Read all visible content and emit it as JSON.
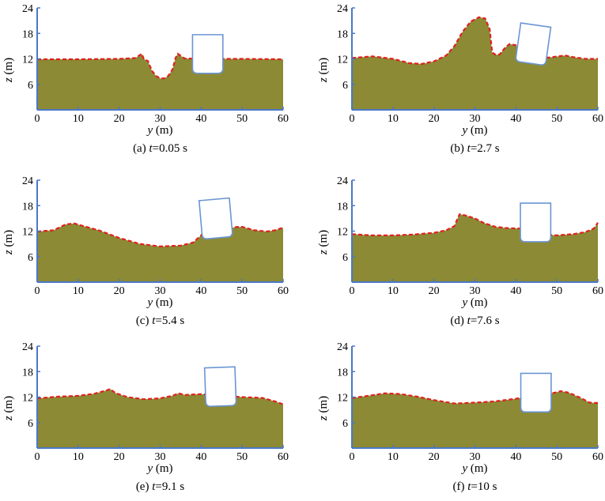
{
  "colors": {
    "fluid_fill": "#8c8a34",
    "free_surface": "#e02020",
    "axis": "#4a78c8",
    "box_stroke": "#6a95d4"
  },
  "chart_data": [
    {
      "type": "area",
      "caption": "(a) t=0.05 s",
      "caption_prefix": "(a) ",
      "caption_var": "t",
      "caption_rest": "=0.05 s",
      "xlabel_var": "y",
      "xlabel_unit": " (m)",
      "ylabel_var": "z",
      "ylabel_unit": " (m)",
      "xlim": [
        0,
        60
      ],
      "ylim": [
        0,
        24
      ],
      "xticks": [
        "0",
        "10",
        "20",
        "30",
        "40",
        "50",
        "60"
      ],
      "yticks": [
        "6",
        "12",
        "18",
        "24"
      ],
      "surface": [
        [
          0,
          11.9
        ],
        [
          10,
          11.9
        ],
        [
          20,
          12.0
        ],
        [
          24,
          12.2
        ],
        [
          25.5,
          13.2
        ],
        [
          26,
          12.0
        ],
        [
          27,
          11.5
        ],
        [
          28,
          9.2
        ],
        [
          29,
          8.0
        ],
        [
          30,
          7.4
        ],
        [
          31,
          7.4
        ],
        [
          32,
          8.0
        ],
        [
          33,
          9.5
        ],
        [
          33.8,
          12.3
        ],
        [
          34.3,
          13.2
        ],
        [
          36,
          12.1
        ],
        [
          40,
          12.0
        ],
        [
          50,
          12.0
        ],
        [
          60,
          11.9
        ]
      ],
      "box": {
        "center_y": 41.6,
        "bottom_z": 8.6,
        "width": 7.4,
        "height": 9.1,
        "angle_deg": 0
      }
    },
    {
      "type": "area",
      "caption": "(b) t=2.7 s",
      "caption_prefix": "(b) ",
      "caption_var": "t",
      "caption_rest": "=2.7 s",
      "xlabel_var": "y",
      "xlabel_unit": " (m)",
      "ylabel_var": "z",
      "ylabel_unit": " (m)",
      "xlim": [
        0,
        60
      ],
      "ylim": [
        0,
        24
      ],
      "xticks": [
        "0",
        "10",
        "20",
        "30",
        "40",
        "50",
        "60"
      ],
      "yticks": [
        "6",
        "12",
        "18",
        "24"
      ],
      "surface": [
        [
          0,
          12.2
        ],
        [
          5,
          12.6
        ],
        [
          10,
          12.0
        ],
        [
          14,
          11.0
        ],
        [
          17,
          10.8
        ],
        [
          20,
          11.4
        ],
        [
          23,
          12.8
        ],
        [
          25,
          15.0
        ],
        [
          27,
          18.4
        ],
        [
          29,
          20.8
        ],
        [
          31,
          21.8
        ],
        [
          32.5,
          21.5
        ],
        [
          33.6,
          19.0
        ],
        [
          34.2,
          13.5
        ],
        [
          35,
          13.0
        ],
        [
          36,
          13.0
        ],
        [
          37.5,
          14.8
        ],
        [
          38.5,
          15.5
        ],
        [
          40,
          15.2
        ],
        [
          41,
          14.0
        ],
        [
          43,
          12.7
        ],
        [
          48,
          12.3
        ],
        [
          52,
          12.8
        ],
        [
          54,
          12.4
        ],
        [
          57,
          12.0
        ],
        [
          60,
          12.0
        ]
      ],
      "box": {
        "center_y": 44.2,
        "bottom_z": 10.9,
        "width": 7.4,
        "height": 9.1,
        "angle_deg": 8
      }
    },
    {
      "type": "area",
      "caption": "(c) t=5.4 s",
      "caption_prefix": "(c) ",
      "caption_var": "t",
      "caption_rest": "=5.4 s",
      "xlabel_var": "y",
      "xlabel_unit": " (m)",
      "ylabel_var": "z",
      "ylabel_unit": " (m)",
      "xlim": [
        0,
        60
      ],
      "ylim": [
        0,
        24
      ],
      "xticks": [
        "0",
        "10",
        "20",
        "30",
        "40",
        "50",
        "60"
      ],
      "yticks": [
        "6",
        "12",
        "18",
        "24"
      ],
      "surface": [
        [
          0,
          11.9
        ],
        [
          4,
          12.2
        ],
        [
          7,
          13.6
        ],
        [
          9,
          13.8
        ],
        [
          12,
          13.0
        ],
        [
          15,
          12.2
        ],
        [
          20,
          10.4
        ],
        [
          25,
          9.0
        ],
        [
          30,
          8.4
        ],
        [
          35,
          8.6
        ],
        [
          38,
          9.3
        ],
        [
          40,
          11.0
        ],
        [
          41,
          12.3
        ],
        [
          43,
          12.8
        ],
        [
          45,
          12.5
        ],
        [
          49,
          13.0
        ],
        [
          50,
          13.0
        ],
        [
          53,
          12.2
        ],
        [
          56,
          11.9
        ],
        [
          58,
          12.2
        ],
        [
          60,
          12.8
        ]
      ],
      "box": {
        "center_y": 43.6,
        "bottom_z": 10.4,
        "width": 7.4,
        "height": 9.1,
        "angle_deg": -5
      }
    },
    {
      "type": "area",
      "caption": "(d) t=7.6 s",
      "caption_prefix": "(d) ",
      "caption_var": "t",
      "caption_rest": "=7.6 s",
      "xlabel_var": "y",
      "xlabel_unit": " (m)",
      "ylabel_var": "z",
      "ylabel_unit": " (m)",
      "xlim": [
        0,
        60
      ],
      "ylim": [
        0,
        24
      ],
      "xticks": [
        "0",
        "10",
        "20",
        "30",
        "40",
        "50",
        "60"
      ],
      "yticks": [
        "6",
        "12",
        "18",
        "24"
      ],
      "surface": [
        [
          0,
          11.3
        ],
        [
          5,
          11.0
        ],
        [
          10,
          11.0
        ],
        [
          15,
          11.2
        ],
        [
          20,
          11.6
        ],
        [
          23,
          12.2
        ],
        [
          25,
          13.2
        ],
        [
          25.8,
          15.0
        ],
        [
          26.3,
          16.0
        ],
        [
          28,
          15.6
        ],
        [
          30,
          15.0
        ],
        [
          32,
          14.0
        ],
        [
          35,
          13.0
        ],
        [
          38,
          12.7
        ],
        [
          42,
          12.6
        ],
        [
          46,
          11.3
        ],
        [
          50,
          11.0
        ],
        [
          54,
          11.3
        ],
        [
          57,
          11.8
        ],
        [
          59,
          12.6
        ],
        [
          60,
          14.0
        ]
      ],
      "box": {
        "center_y": 44.8,
        "bottom_z": 9.5,
        "width": 7.4,
        "height": 9.1,
        "angle_deg": 0
      }
    },
    {
      "type": "area",
      "caption": "(e) t=9.1 s",
      "caption_prefix": "(e) ",
      "caption_var": "t",
      "caption_rest": "=9.1 s",
      "xlabel_var": "y",
      "xlabel_unit": " (m)",
      "ylabel_var": "z",
      "ylabel_unit": " (m)",
      "xlim": [
        0,
        60
      ],
      "ylim": [
        0,
        24
      ],
      "xticks": [
        "0",
        "10",
        "20",
        "30",
        "40",
        "50",
        "60"
      ],
      "yticks": [
        "6",
        "12",
        "18",
        "24"
      ],
      "surface": [
        [
          0,
          11.7
        ],
        [
          5,
          12.1
        ],
        [
          10,
          12.3
        ],
        [
          14,
          12.8
        ],
        [
          17,
          13.6
        ],
        [
          17.8,
          13.9
        ],
        [
          19,
          13.0
        ],
        [
          22,
          12.0
        ],
        [
          26,
          11.5
        ],
        [
          30,
          11.7
        ],
        [
          33,
          12.3
        ],
        [
          34.5,
          12.9
        ],
        [
          36,
          12.5
        ],
        [
          40,
          12.7
        ],
        [
          45,
          12.3
        ],
        [
          50,
          12.0
        ],
        [
          55,
          11.8
        ],
        [
          58,
          11.0
        ],
        [
          60,
          10.3
        ]
      ],
      "box": {
        "center_y": 44.7,
        "bottom_z": 9.9,
        "width": 7.4,
        "height": 9.1,
        "angle_deg": -2
      }
    },
    {
      "type": "area",
      "caption": "(f) t=10 s",
      "caption_prefix": "(f) ",
      "caption_var": "t",
      "caption_rest": "=10 s",
      "xlabel_var": "y",
      "xlabel_unit": " (m)",
      "ylabel_var": "z",
      "ylabel_unit": " (m)",
      "xlim": [
        0,
        60
      ],
      "ylim": [
        0,
        24
      ],
      "xticks": [
        "0",
        "10",
        "20",
        "30",
        "40",
        "50",
        "60"
      ],
      "yticks": [
        "6",
        "12",
        "18",
        "24"
      ],
      "surface": [
        [
          0,
          11.8
        ],
        [
          4,
          12.3
        ],
        [
          8,
          12.9
        ],
        [
          12,
          12.7
        ],
        [
          16,
          12.1
        ],
        [
          20,
          11.3
        ],
        [
          25,
          10.5
        ],
        [
          30,
          10.7
        ],
        [
          35,
          11.0
        ],
        [
          40,
          11.6
        ],
        [
          44,
          12.3
        ],
        [
          48,
          12.7
        ],
        [
          51,
          13.4
        ],
        [
          53,
          13.0
        ],
        [
          56,
          11.7
        ],
        [
          58,
          10.7
        ],
        [
          60,
          10.6
        ]
      ],
      "box": {
        "center_y": 44.9,
        "bottom_z": 8.5,
        "width": 7.4,
        "height": 9.1,
        "angle_deg": 0
      }
    }
  ]
}
